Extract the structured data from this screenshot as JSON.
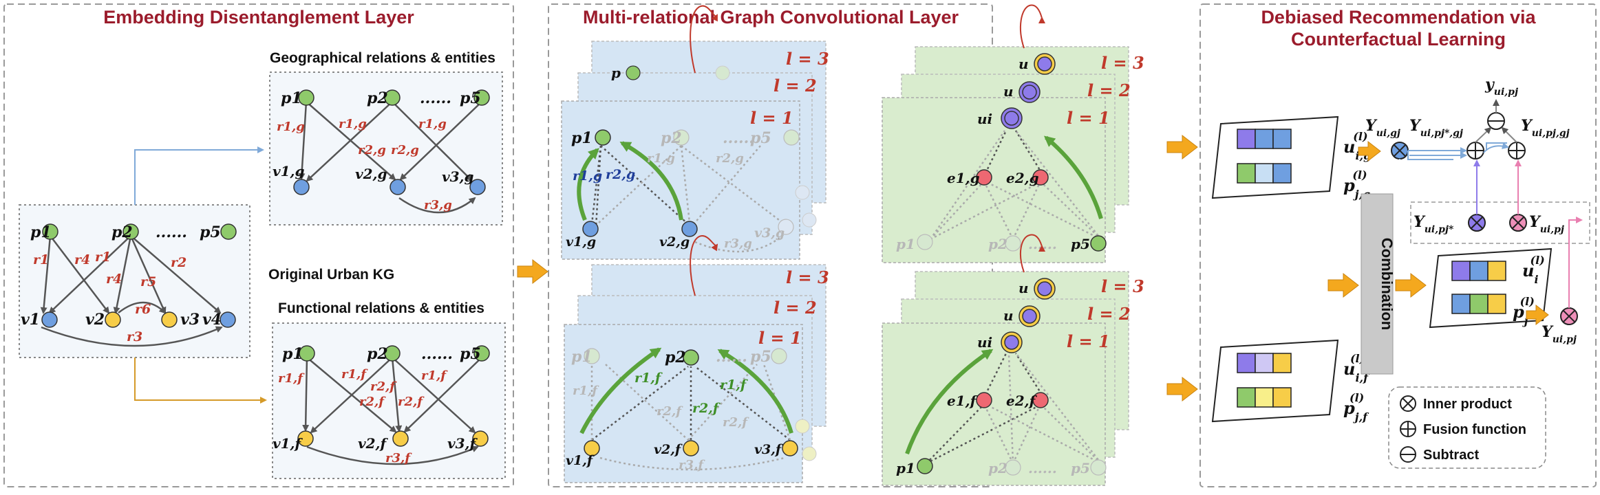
{
  "colors": {
    "title_red": "#9b1c2c",
    "relation_red": "#c0392b",
    "green_node": "#8fca6b",
    "blue_node": "#6f9fe0",
    "yellow_node": "#f7cd48",
    "red_node": "#ee6872",
    "purple_node": "#8e7bea",
    "panel_blue": "#d5e5f4",
    "panel_green": "#d9ecce",
    "arrow_orange": "#f4a81e",
    "blue_arrow": "#7fa9d8",
    "orange_arrow": "#d59a28"
  },
  "sections": {
    "left_title": "Embedding Disentanglement Layer",
    "middle_title": "Multi-relational Graph Convolutional Layer",
    "right_title_line1": "Debiased Recommendation via",
    "right_title_line2": "Counterfactual Learning"
  },
  "left": {
    "geo_title": "Geographical relations & entities",
    "kg_title": "Original Urban KG",
    "func_title": "Functional relations & entities",
    "ellipsis": "......",
    "kg": {
      "p1": "p1",
      "p2": "p2",
      "p5": "p5",
      "v1": "v1",
      "v2": "v2",
      "v3": "v3",
      "v4": "v4",
      "r1": "r1",
      "r2": "r2",
      "r3": "r3",
      "r4": "r4",
      "r5": "r5",
      "r6": "r6"
    },
    "geo": {
      "p1": "p1",
      "p2": "p2",
      "p5": "p5",
      "v1": "v1,g",
      "v2": "v2,g",
      "v3": "v3,g",
      "ra": "r1,g",
      "rb": "r1,g",
      "rc": "r2,g",
      "rd": "r2,g",
      "re": "r1,g",
      "rf": "r3,g"
    },
    "func": {
      "p1": "p1",
      "p2": "p2",
      "p5": "p5",
      "v1": "v1,f",
      "v2": "v2,f",
      "v3": "v3,f",
      "ra": "r1,f",
      "rb": "r1,f",
      "rc": "r2,f",
      "rd": "r2,f",
      "re": "r2,f",
      "rf": "r1,f",
      "rg": "r3,f"
    }
  },
  "middle": {
    "layer3": "l = 3",
    "layer2": "l = 2",
    "layer1": "l = 1",
    "geo": {
      "p1": "p1",
      "p2": "p2",
      "p5": "p5",
      "v1": "v1,g",
      "v2": "v2,g",
      "v3": "v3,g",
      "r_blue1": "r1,g",
      "r_blue2": "r2,g",
      "r_faint1": "r1,g",
      "r_faint2": "r2,g",
      "r_faint3": "r3,g"
    },
    "func": {
      "p1": "p1",
      "p2": "p2",
      "p5": "p5",
      "v1": "v1,f",
      "v2": "v2,f",
      "v3": "v3,f",
      "r_green1": "r1,f",
      "r_green2": "r1,f",
      "r_green3": "r2,f",
      "r_faint1": "r1,f",
      "r_faint2": "r2,f",
      "r_faint3": "r2,f",
      "r_faint4": "r3,f"
    },
    "user_geo": {
      "u": "ui",
      "e1": "e1,g",
      "e2": "e2,g",
      "p1": "p1",
      "p2": "p2",
      "p5": "p5"
    },
    "user_func": {
      "u": "ui",
      "e1": "e1,f",
      "e2": "e2,f",
      "p1": "p1",
      "p2": "p2",
      "p5": "p5"
    }
  },
  "right": {
    "u_ig": "u",
    "u_ig_sup": "(l)",
    "u_ig_sub": "i,g",
    "p_jg": "p",
    "p_jg_sup": "(l)",
    "p_jg_sub": "j,g",
    "u_if": "u",
    "u_if_sup": "(l)",
    "u_if_sub": "i,f",
    "p_jf": "p",
    "p_jf_sup": "(l)",
    "p_jf_sub": "j,f",
    "u_i": "u",
    "u_i_sup": "(l)",
    "u_i_sub": "i",
    "p_j": "p",
    "p_j_sup": "(l)",
    "p_j_sub": "j",
    "combination": "Combination",
    "y_top": "y",
    "y_top_sub": "ui,pj",
    "Y_ug": "Y",
    "Y_ug_sub": "ui,gj",
    "Y_upg_star": "Y",
    "Y_upg_star_sub": "ui,pj*,gj",
    "Y_upg": "Y",
    "Y_upg_sub": "ui,pj,gj",
    "Y_up_star": "Y",
    "Y_up_star_sub": "ui,pj*",
    "Y_up": "Y",
    "Y_up_sub": "ui,pj",
    "Y_up2": "Y",
    "Y_up2_sub": "ui,pj",
    "legend": {
      "inner": "Inner product",
      "fusion": "Fusion function",
      "subtract": "Subtract"
    }
  }
}
